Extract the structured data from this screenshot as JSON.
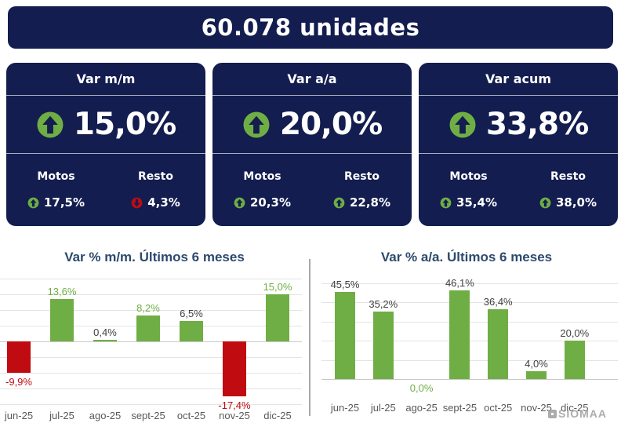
{
  "header": {
    "title": "60.078 unidades"
  },
  "cards": [
    {
      "title": "Var m/m",
      "value": "15,0%",
      "direction": "up",
      "breakdown": [
        {
          "label": "Motos",
          "value": "17,5%",
          "direction": "up"
        },
        {
          "label": "Resto",
          "value": "4,3%",
          "direction": "down"
        }
      ]
    },
    {
      "title": "Var a/a",
      "value": "20,0%",
      "direction": "up",
      "breakdown": [
        {
          "label": "Motos",
          "value": "20,3%",
          "direction": "up"
        },
        {
          "label": "Resto",
          "value": "22,8%",
          "direction": "up"
        }
      ]
    },
    {
      "title": "Var acum",
      "value": "33,8%",
      "direction": "up",
      "breakdown": [
        {
          "label": "Motos",
          "value": "35,4%",
          "direction": "up"
        },
        {
          "label": "Resto",
          "value": "38,0%",
          "direction": "up"
        }
      ]
    }
  ],
  "watermark": {
    "text": "SIOMAA",
    "logo_icon": "siomaa-logo-icon"
  },
  "colors": {
    "navy": "#131d4f",
    "green": "#6fae44",
    "red": "#c00b10",
    "dark": "#404040",
    "title": "#2d4a6e",
    "axis": "#595959",
    "grid": "#e4e4e4",
    "baseline": "#c9c9c9",
    "divider": "#a8a8a8",
    "watermark": "#9e9e9e"
  },
  "chart_data": [
    {
      "type": "bar",
      "title": "Var % m/m. Últimos 6 meses",
      "categories": [
        "jun-25",
        "jul-25",
        "ago-25",
        "sept-25",
        "oct-25",
        "nov-25",
        "dic-25"
      ],
      "values": [
        -9.9,
        13.6,
        0.4,
        8.2,
        6.5,
        -17.4,
        15.0
      ],
      "labels": [
        "-9,9%",
        "13,6%",
        "0,4%",
        "8,2%",
        "6,5%",
        "-17,4%",
        "15,0%"
      ],
      "bar_colors": [
        "red",
        "green",
        "green",
        "green",
        "green",
        "red",
        "green"
      ],
      "label_colors": [
        "red",
        "green",
        "dark",
        "green",
        "dark",
        "red",
        "green"
      ],
      "xlabel": "",
      "ylabel": "",
      "ylim": [
        -20,
        20
      ],
      "grid": true,
      "legend": false
    },
    {
      "type": "bar",
      "title": "Var % a/a. Últimos 6 meses",
      "categories": [
        "jun-25",
        "jul-25",
        "ago-25",
        "sept-25",
        "oct-25",
        "nov-25",
        "dic-25"
      ],
      "values": [
        45.5,
        35.2,
        0.0,
        46.1,
        36.4,
        4.0,
        20.0
      ],
      "labels": [
        "45,5%",
        "35,2%",
        "0,0%",
        "46,1%",
        "36,4%",
        "4,0%",
        "20,0%"
      ],
      "bar_colors": [
        "green",
        "green",
        "green",
        "green",
        "green",
        "green",
        "green"
      ],
      "label_colors": [
        "dark",
        "dark",
        "green",
        "dark",
        "dark",
        "dark",
        "dark"
      ],
      "xlabel": "",
      "ylabel": "",
      "ylim": [
        0,
        50
      ],
      "grid": true,
      "legend": false
    }
  ]
}
